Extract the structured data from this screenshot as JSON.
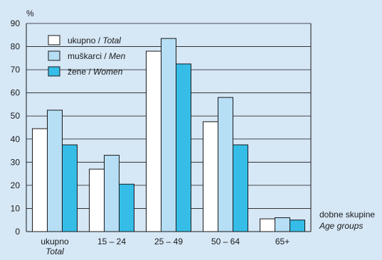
{
  "chart_data": {
    "type": "bar",
    "ylabel": "%",
    "ylim": [
      0,
      90
    ],
    "yticks": [
      0,
      10,
      20,
      30,
      40,
      50,
      60,
      70,
      80,
      90
    ],
    "grid": true,
    "legend_position": "top-left",
    "categories": [
      {
        "main": "ukupno",
        "sub": "Total"
      },
      {
        "main": "15 – 24",
        "sub": ""
      },
      {
        "main": "25 – 49",
        "sub": ""
      },
      {
        "main": "50 – 64",
        "sub": ""
      },
      {
        "main": "65+",
        "sub": ""
      }
    ],
    "xlabel": {
      "main": "dobne skupine",
      "sub": "Age groups"
    },
    "series": [
      {
        "name": "ukupno / ",
        "name_en": "Total",
        "color": "#ffffff",
        "values": [
          44.5,
          27,
          78,
          47.5,
          5.5
        ]
      },
      {
        "name": "muškarci / ",
        "name_en": "Men",
        "color": "#b6def5",
        "values": [
          52.5,
          33,
          83.5,
          58,
          6
        ]
      },
      {
        "name": "žene / ",
        "name_en": "Women",
        "color": "#35bde8",
        "values": [
          37.5,
          20.5,
          72.5,
          37.5,
          5
        ]
      }
    ]
  }
}
